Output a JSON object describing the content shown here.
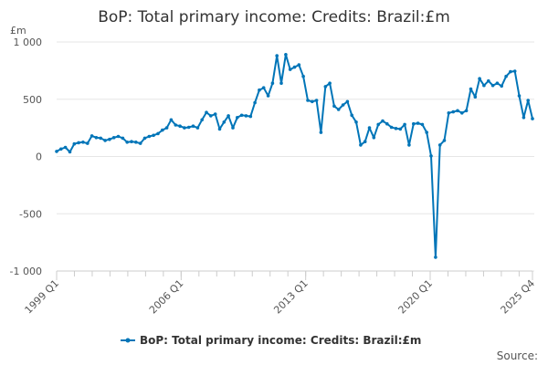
{
  "chart_data": {
    "type": "line",
    "title": "BoP: Total primary income: Credits: Brazil:£m",
    "unit": "£m",
    "source_label": "Source:",
    "ylim": [
      -1000,
      1000
    ],
    "y_ticks": [
      1000,
      500,
      0,
      -500,
      -1000
    ],
    "y_tick_labels": [
      "1 000",
      "500",
      "0",
      "-500",
      "-1 000"
    ],
    "x_start": "1999 Q1",
    "x_end": "2025 Q4",
    "x_tick_labels": [
      "1999 Q1",
      "2006 Q1",
      "2013 Q1",
      "2020 Q1",
      "2025 Q4"
    ],
    "legend_position": "bottom-center",
    "grid": "horizontal",
    "series": [
      {
        "name": "BoP: Total primary income: Credits: Brazil:£m",
        "color": "#0075b8",
        "values": [
          45,
          65,
          80,
          40,
          110,
          120,
          125,
          115,
          180,
          165,
          160,
          140,
          150,
          165,
          175,
          160,
          125,
          130,
          125,
          115,
          160,
          175,
          185,
          200,
          230,
          250,
          320,
          275,
          265,
          250,
          255,
          265,
          250,
          320,
          385,
          355,
          370,
          240,
          300,
          355,
          250,
          340,
          360,
          355,
          350,
          470,
          580,
          600,
          530,
          640,
          880,
          640,
          890,
          760,
          780,
          800,
          700,
          490,
          480,
          490,
          210,
          610,
          640,
          440,
          410,
          450,
          480,
          360,
          300,
          100,
          130,
          250,
          165,
          280,
          310,
          285,
          255,
          245,
          240,
          280,
          100,
          285,
          290,
          280,
          210,
          5,
          -880,
          100,
          140,
          380,
          390,
          400,
          380,
          400,
          590,
          520,
          680,
          620,
          660,
          620,
          640,
          615,
          700,
          740,
          745,
          530,
          340,
          490,
          330
        ]
      }
    ]
  }
}
